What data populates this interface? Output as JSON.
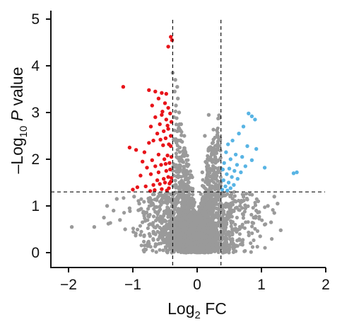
{
  "chart_data": {
    "type": "scatter",
    "title": "",
    "xlabel": {
      "main": "Log",
      "sub": "2",
      "suffix": " FC"
    },
    "ylabel": {
      "prefix": "–Log",
      "sub": "10",
      "italic": "P",
      "suffix": " value"
    },
    "xlim": [
      -2.2,
      2
    ],
    "ylim": [
      -0.1,
      5
    ],
    "x_ticks": [
      -2,
      -1,
      0,
      1,
      2
    ],
    "x_tick_labels": [
      "−2",
      "−1",
      "0",
      "1",
      "2"
    ],
    "y_ticks": [
      0,
      1,
      2,
      3,
      4,
      5
    ],
    "y_tick_labels": [
      "0",
      "1",
      "2",
      "3",
      "4",
      "5"
    ],
    "grid": false,
    "thresholds": {
      "x": [
        -0.38,
        0.37
      ],
      "y": 1.3
    },
    "colors": {
      "down": "#e8141a",
      "up": "#58b4e4",
      "ns": "#9a9a9a",
      "axis": "#111111"
    },
    "series": [
      {
        "group": "down",
        "color": "#e8141a",
        "points": [
          [
            -0.41,
            4.62
          ],
          [
            -0.39,
            4.55
          ],
          [
            -0.45,
            4.41
          ],
          [
            -1.15,
            3.55
          ],
          [
            -0.75,
            3.48
          ],
          [
            -0.65,
            3.45
          ],
          [
            -0.55,
            3.42
          ],
          [
            -0.48,
            3.4
          ],
          [
            -0.6,
            3.3
          ],
          [
            -0.5,
            3.2
          ],
          [
            -0.45,
            3.1
          ],
          [
            -0.7,
            3.15
          ],
          [
            -0.42,
            2.98
          ],
          [
            -0.55,
            2.95
          ],
          [
            -0.65,
            2.9
          ],
          [
            -0.48,
            2.85
          ],
          [
            -0.4,
            2.8
          ],
          [
            -0.58,
            2.75
          ],
          [
            -0.72,
            2.7
          ],
          [
            -0.45,
            2.65
          ],
          [
            -0.52,
            2.6
          ],
          [
            -0.62,
            2.55
          ],
          [
            -0.41,
            2.5
          ],
          [
            -0.49,
            2.45
          ],
          [
            -0.57,
            2.42
          ],
          [
            -0.68,
            2.4
          ],
          [
            -0.75,
            2.35
          ],
          [
            -0.44,
            2.32
          ],
          [
            -0.53,
            2.3
          ],
          [
            -1.05,
            2.25
          ],
          [
            -0.95,
            2.2
          ],
          [
            -0.82,
            2.15
          ],
          [
            -0.6,
            2.1
          ],
          [
            -0.46,
            2.08
          ],
          [
            -0.4,
            2.05
          ],
          [
            -0.51,
            2.0
          ],
          [
            -0.7,
            1.98
          ],
          [
            -0.85,
            1.95
          ],
          [
            -0.43,
            1.92
          ],
          [
            -0.56,
            1.88
          ],
          [
            -0.65,
            1.85
          ],
          [
            -0.78,
            1.82
          ],
          [
            -0.42,
            1.78
          ],
          [
            -0.48,
            1.75
          ],
          [
            -0.6,
            1.72
          ],
          [
            -0.72,
            1.68
          ],
          [
            -0.88,
            1.65
          ],
          [
            -0.45,
            1.62
          ],
          [
            -0.52,
            1.58
          ],
          [
            -0.62,
            1.55
          ],
          [
            -0.41,
            1.52
          ],
          [
            -0.5,
            1.5
          ],
          [
            -0.58,
            1.47
          ],
          [
            -0.68,
            1.45
          ],
          [
            -0.8,
            1.42
          ],
          [
            -0.93,
            1.4
          ],
          [
            -0.44,
            1.38
          ],
          [
            -0.55,
            1.36
          ],
          [
            -0.66,
            1.34
          ],
          [
            -0.47,
            1.33
          ],
          [
            -0.73,
            1.32
          ],
          [
            -1.0,
            1.35
          ],
          [
            -0.41,
            2.28
          ],
          [
            -0.46,
            2.72
          ],
          [
            -0.54,
            3.02
          ],
          [
            -0.43,
            1.48
          ],
          [
            -0.49,
            1.9
          ],
          [
            -0.4,
            1.6
          ]
        ]
      },
      {
        "group": "up",
        "color": "#58b4e4",
        "points": [
          [
            0.8,
            2.98
          ],
          [
            0.85,
            2.92
          ],
          [
            0.9,
            2.85
          ],
          [
            0.72,
            2.7
          ],
          [
            0.65,
            2.55
          ],
          [
            0.55,
            2.4
          ],
          [
            0.48,
            2.32
          ],
          [
            0.78,
            2.28
          ],
          [
            0.92,
            2.22
          ],
          [
            0.45,
            2.15
          ],
          [
            0.6,
            2.1
          ],
          [
            0.7,
            2.05
          ],
          [
            0.52,
            2.0
          ],
          [
            0.85,
            1.98
          ],
          [
            0.42,
            1.92
          ],
          [
            0.62,
            1.88
          ],
          [
            0.75,
            1.85
          ],
          [
            0.5,
            1.8
          ],
          [
            1.05,
            1.82
          ],
          [
            0.4,
            1.78
          ],
          [
            0.58,
            1.75
          ],
          [
            0.68,
            1.72
          ],
          [
            1.55,
            1.72
          ],
          [
            0.46,
            1.68
          ],
          [
            0.54,
            1.62
          ],
          [
            0.63,
            1.58
          ],
          [
            0.41,
            1.55
          ],
          [
            0.49,
            1.5
          ],
          [
            0.57,
            1.45
          ],
          [
            0.44,
            1.42
          ],
          [
            0.52,
            1.38
          ],
          [
            0.39,
            1.35
          ],
          [
            0.47,
            1.33
          ],
          [
            1.5,
            1.7
          ]
        ]
      },
      {
        "group": "ns",
        "color": "#9a9a9a",
        "points": [
          [
            -0.35,
            3.45
          ],
          [
            -0.3,
            3.3
          ],
          [
            -0.33,
            3.15
          ],
          [
            -0.28,
            3.0
          ],
          [
            -0.36,
            2.9
          ],
          [
            -0.25,
            2.75
          ],
          [
            -0.31,
            2.6
          ],
          [
            -0.2,
            2.5
          ],
          [
            -0.34,
            2.4
          ],
          [
            -0.27,
            2.25
          ],
          [
            -0.18,
            2.15
          ],
          [
            -0.32,
            2.05
          ],
          [
            -0.23,
            1.95
          ],
          [
            -0.15,
            1.85
          ],
          [
            -0.29,
            1.75
          ],
          [
            -0.36,
            1.65
          ],
          [
            -0.12,
            1.6
          ],
          [
            -0.22,
            1.5
          ],
          [
            -0.33,
            1.45
          ],
          [
            -0.1,
            1.38
          ],
          [
            0.18,
            2.95
          ],
          [
            0.12,
            2.5
          ],
          [
            0.22,
            2.2
          ],
          [
            0.28,
            2.05
          ],
          [
            0.15,
            1.92
          ],
          [
            0.32,
            1.8
          ],
          [
            0.08,
            1.72
          ],
          [
            0.25,
            1.6
          ],
          [
            0.35,
            1.52
          ],
          [
            0.1,
            1.42
          ],
          [
            0.2,
            1.35
          ],
          [
            -0.38,
            3.85
          ],
          [
            -0.34,
            3.7
          ],
          [
            -0.31,
            3.55
          ],
          [
            -1.95,
            0.55
          ],
          [
            -1.6,
            0.55
          ],
          [
            -1.38,
            0.62
          ],
          [
            -1.4,
            1.0
          ],
          [
            -1.3,
            0.9
          ],
          [
            -1.05,
            0.95
          ],
          [
            -0.9,
            1.05
          ],
          [
            -0.8,
            0.85
          ],
          [
            -1.25,
            1.15
          ],
          [
            -1.45,
            0.75
          ],
          [
            -0.68,
            0.45
          ],
          [
            -1.2,
            0.7
          ],
          [
            -0.98,
            1.2
          ],
          [
            -0.75,
            1.1
          ],
          [
            -1.12,
            0.5
          ],
          [
            -0.85,
            0.65
          ],
          [
            1.2,
            0.85
          ],
          [
            1.3,
            0.48
          ],
          [
            1.1,
            1.0
          ],
          [
            1.2,
            1.2
          ],
          [
            0.95,
            1.1
          ],
          [
            0.88,
            0.75
          ],
          [
            1.05,
            0.6
          ],
          [
            0.82,
            1.25
          ],
          [
            0.75,
            0.95
          ],
          [
            1.25,
            1.05
          ],
          [
            0.7,
            0.55
          ],
          [
            0.98,
            0.35
          ],
          [
            1.15,
            0.65
          ],
          [
            0.92,
            0.9
          ]
        ]
      }
    ],
    "dense_cloud": {
      "color": "#9a9a9a",
      "note_center_x": 0.0
    }
  }
}
